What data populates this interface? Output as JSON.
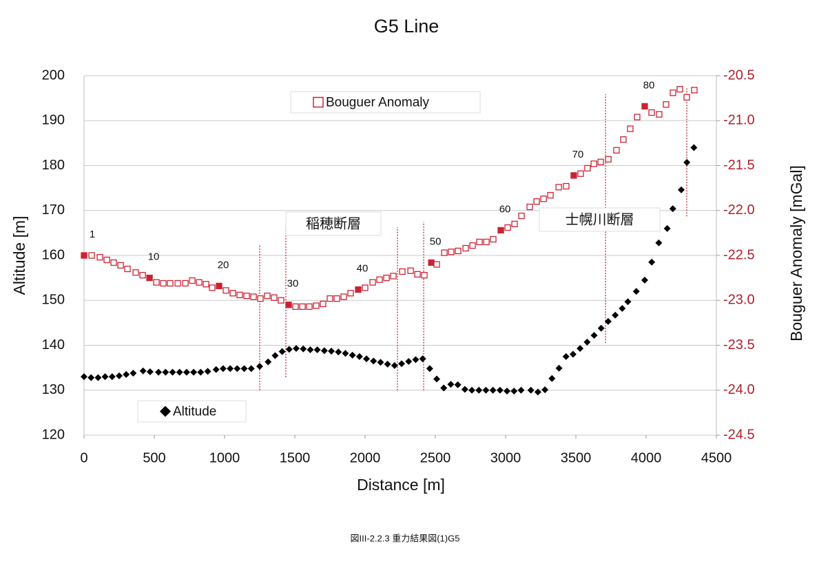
{
  "chart_data": {
    "type": "scatter",
    "title": "G5 Line",
    "xlabel": "Distance [m]",
    "ylabel": "Altitude [m]",
    "y2label": "Bouguer Anomaly [mGal]",
    "xlim": [
      0,
      4500
    ],
    "xticks": [
      0,
      500,
      1000,
      1500,
      2000,
      2500,
      3000,
      3500,
      4000,
      4500
    ],
    "ylim": [
      120,
      200
    ],
    "yticks": [
      120,
      130,
      140,
      150,
      160,
      170,
      180,
      190,
      200
    ],
    "y2lim": [
      -24.5,
      -20.5
    ],
    "y2ticks": [
      -24.5,
      {
        "value": -24,
        "label": "-24.0"
      },
      -23.5,
      {
        "value": -23,
        "label": "-23.0"
      },
      -22.5,
      {
        "value": -22,
        "label": "-22.0"
      },
      -21.5,
      {
        "value": -21,
        "label": "-21.0"
      },
      -20.5
    ],
    "grid": true,
    "series": [
      {
        "name": "Bouguer Anomaly",
        "color": "#cc2233",
        "marker": "square",
        "axis": "y2",
        "x": [
          0,
          54,
          113,
          162,
          211,
          260,
          309,
          368,
          417,
          466,
          515,
          564,
          613,
          667,
          721,
          770,
          819,
          868,
          912,
          961,
          1010,
          1059,
          1108,
          1157,
          1206,
          1255,
          1304,
          1353,
          1402,
          1456,
          1505,
          1554,
          1603,
          1652,
          1701,
          1750,
          1799,
          1848,
          1897,
          1951,
          2000,
          2054,
          2103,
          2152,
          2201,
          2265,
          2324,
          2373,
          2422,
          2471,
          2510,
          2564,
          2613,
          2662,
          2716,
          2765,
          2814,
          2863,
          2912,
          2966,
          3015,
          3064,
          3113,
          3172,
          3221,
          3270,
          3319,
          3378,
          3431,
          3485,
          3534,
          3583,
          3628,
          3677,
          3731,
          3789,
          3838,
          3887,
          3936,
          3990,
          4039,
          4093,
          4142,
          4191,
          4240,
          4289,
          4343
        ],
        "values": [
          -22.5,
          -22.5,
          -22.52,
          -22.55,
          -22.58,
          -22.61,
          -22.65,
          -22.69,
          -22.72,
          -22.75,
          -22.8,
          -22.81,
          -22.81,
          -22.81,
          -22.81,
          -22.78,
          -22.8,
          -22.82,
          -22.86,
          -22.84,
          -22.89,
          -22.92,
          -22.94,
          -22.95,
          -22.96,
          -22.98,
          -22.95,
          -22.97,
          -23.0,
          -23.05,
          -23.07,
          -23.07,
          -23.07,
          -23.06,
          -23.04,
          -22.98,
          -22.98,
          -22.96,
          -22.92,
          -22.88,
          -22.86,
          -22.8,
          -22.77,
          -22.75,
          -22.73,
          -22.68,
          -22.67,
          -22.71,
          -22.72,
          -22.58,
          -22.6,
          -22.47,
          -22.46,
          -22.45,
          -22.42,
          -22.39,
          -22.35,
          -22.35,
          -22.32,
          -22.22,
          -22.19,
          -22.15,
          -22.06,
          -21.96,
          -21.9,
          -21.87,
          -21.83,
          -21.74,
          -21.73,
          -21.61,
          -21.59,
          -21.53,
          -21.48,
          -21.46,
          -21.43,
          -21.33,
          -21.21,
          -21.09,
          -20.96,
          -20.84,
          -20.91,
          -20.93,
          -20.82,
          -20.69,
          -20.65,
          -20.74,
          -20.66
        ]
      },
      {
        "name": "Altitude",
        "color": "#000000",
        "marker": "diamond",
        "x": [
          0,
          50,
          100,
          150,
          200,
          250,
          300,
          350,
          420,
          470,
          530,
          580,
          630,
          680,
          730,
          780,
          830,
          880,
          940,
          990,
          1040,
          1090,
          1140,
          1190,
          1250,
          1310,
          1360,
          1410,
          1460,
          1510,
          1560,
          1610,
          1660,
          1710,
          1760,
          1810,
          1860,
          1910,
          1960,
          2010,
          2060,
          2110,
          2160,
          2210,
          2260,
          2310,
          2360,
          2410,
          2460,
          2510,
          2560,
          2610,
          2660,
          2710,
          2760,
          2810,
          2860,
          2910,
          2960,
          3010,
          3060,
          3110,
          3180,
          3230,
          3280,
          3330,
          3380,
          3430,
          3480,
          3530,
          3580,
          3630,
          3680,
          3730,
          3780,
          3830,
          3870,
          3930,
          3990,
          4040,
          4090,
          4150,
          4190,
          4250,
          4290,
          4340
        ],
        "values": [
          133,
          132.8,
          132.8,
          133,
          133,
          133.2,
          133.5,
          133.8,
          134.3,
          134.1,
          134,
          134,
          134,
          134,
          134,
          134,
          134,
          134.2,
          134.6,
          134.8,
          134.8,
          134.8,
          134.8,
          134.8,
          135.3,
          136.3,
          137.7,
          138.6,
          139.1,
          139.3,
          139.2,
          139,
          139,
          138.8,
          138.7,
          138.5,
          138.2,
          137.8,
          137.5,
          137,
          136.5,
          136.2,
          135.8,
          135.5,
          135.9,
          136.4,
          136.8,
          137,
          134.8,
          132.5,
          130.5,
          131.3,
          131.2,
          130.2,
          130,
          130,
          130,
          130,
          130,
          129.8,
          129.8,
          130,
          130,
          129.6,
          130.1,
          132.6,
          134.9,
          137.5,
          138,
          139.3,
          140.7,
          142.2,
          143.8,
          145.3,
          146.7,
          148.2,
          149.7,
          152,
          154.5,
          158.5,
          162.8,
          166,
          170.4,
          174.6,
          180.7,
          184
        ]
      }
    ],
    "point_numbers": [
      1,
      10,
      20,
      30,
      40,
      50,
      60,
      70,
      80
    ],
    "fault_lines": [
      {
        "x": 1250,
        "y": [
          130,
          162.5
        ]
      },
      {
        "x": 1436,
        "y": [
          132.9,
          166.6
        ]
      },
      {
        "x": 2230,
        "y": [
          130,
          166.3
        ]
      },
      {
        "x": 2417,
        "y": [
          130,
          167.5
        ]
      },
      {
        "x": 3711,
        "y": [
          140.5,
          195.9
        ]
      },
      {
        "x": 4289,
        "y": [
          168.7,
          197.2
        ]
      }
    ],
    "annotations": [
      "稲穂断層",
      "士幌川断層"
    ],
    "caption": "図III-2.2.3 重力結果図(1)G5"
  }
}
